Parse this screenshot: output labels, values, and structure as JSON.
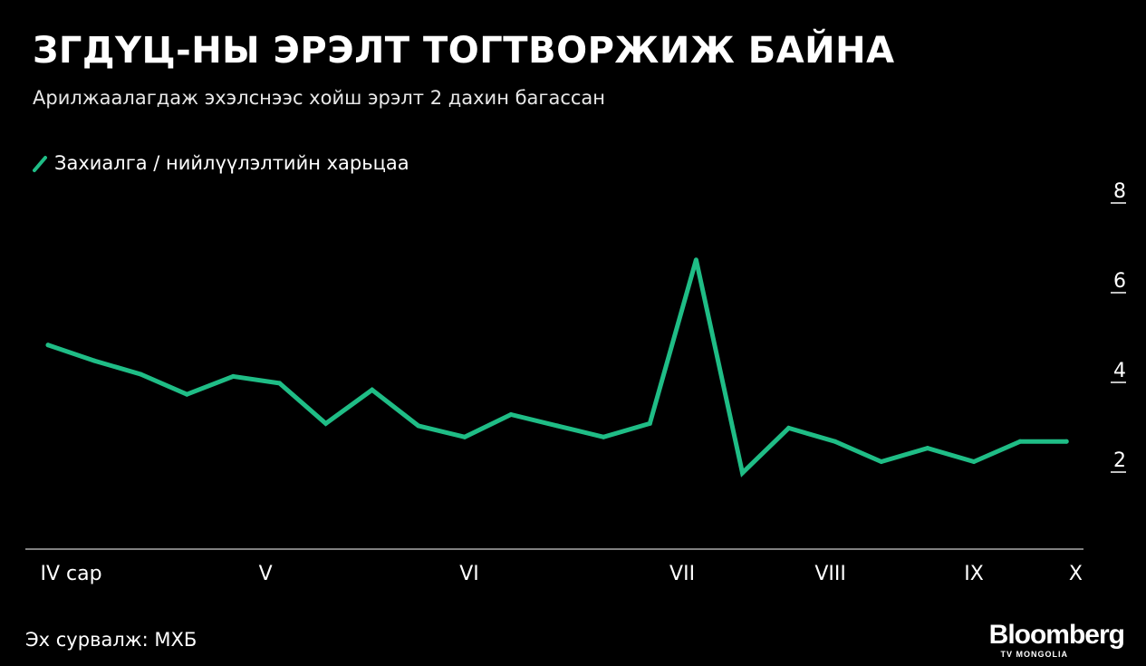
{
  "chart_data": {
    "type": "line",
    "title": "ЗГДҮЦ-НЫ ЭРЭЛТ ТОГТВОРЖИЖ БАЙНА",
    "subtitle": "Арилжаалагдаж эхэлснээс хойш эрэлт 2 дахин багассан",
    "ylim": [
      0,
      8
    ],
    "y_ticks": [
      "2",
      "4",
      "6",
      "8"
    ],
    "x_ticks": [
      {
        "label": "IV сар",
        "index": 0.5
      },
      {
        "label": "V",
        "index": 4.7
      },
      {
        "label": "VI",
        "index": 9.1
      },
      {
        "label": "VII",
        "index": 13.7
      },
      {
        "label": "VIII",
        "index": 16.9
      },
      {
        "label": "IX",
        "index": 20.0
      },
      {
        "label": "X",
        "index": 22.2
      }
    ],
    "grid": false,
    "legend_position": "top-left",
    "series": [
      {
        "name": "Захиалга / нийлүүлэлтийн харьцаа",
        "color": "#1fbd86",
        "values": [
          4.55,
          4.2,
          3.9,
          3.45,
          3.85,
          3.7,
          2.8,
          3.55,
          2.75,
          2.5,
          3.0,
          2.75,
          2.5,
          2.8,
          6.45,
          1.7,
          2.7,
          2.4,
          1.95,
          2.25,
          1.95,
          2.4,
          2.4
        ]
      }
    ]
  },
  "source": "Эх сурвалж: МХБ",
  "logo": {
    "name": "Bloomberg",
    "sub": "TV MONGOLIA"
  },
  "colors": {
    "background": "#000000",
    "line": "#1fbd86",
    "text": "#ffffff"
  }
}
